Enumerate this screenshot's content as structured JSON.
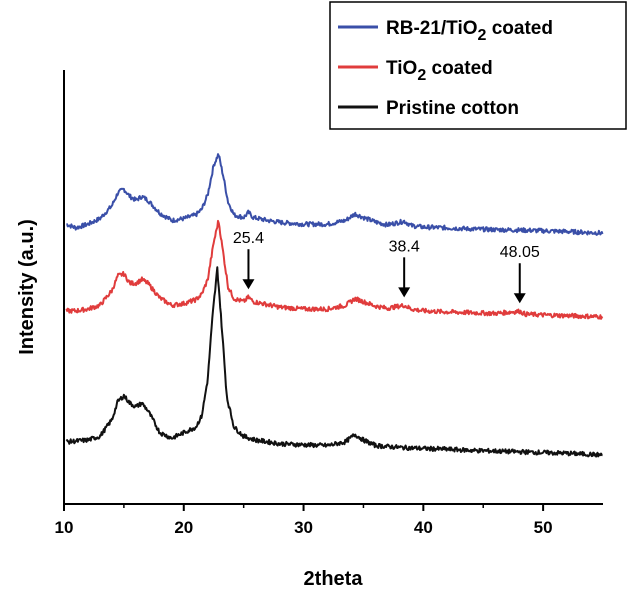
{
  "chart_data": {
    "type": "line",
    "xlabel": "2theta",
    "ylabel": "Intensity (a.u.)",
    "xlim": [
      10,
      55
    ],
    "xticks": [
      10,
      20,
      30,
      40,
      50
    ],
    "y_ticks_shown": false,
    "grid": false,
    "legend_position": "top-right",
    "series": [
      {
        "name": "RB-21/TiO2 coated",
        "legend_parts": [
          "RB-21/TiO",
          "2",
          " coated"
        ],
        "color": "#3a4fa8",
        "points": [
          [
            10.2,
            0.65
          ],
          [
            11,
            0.64
          ],
          [
            12,
            0.65
          ],
          [
            13,
            0.665
          ],
          [
            14,
            0.7
          ],
          [
            14.5,
            0.735
          ],
          [
            15,
            0.745
          ],
          [
            15.5,
            0.725
          ],
          [
            16,
            0.715
          ],
          [
            16.5,
            0.725
          ],
          [
            17,
            0.715
          ],
          [
            18,
            0.68
          ],
          [
            19,
            0.66
          ],
          [
            20,
            0.665
          ],
          [
            21,
            0.675
          ],
          [
            21.5,
            0.69
          ],
          [
            22,
            0.73
          ],
          [
            22.5,
            0.81
          ],
          [
            22.9,
            0.84
          ],
          [
            23.3,
            0.78
          ],
          [
            23.7,
            0.71
          ],
          [
            24.2,
            0.675
          ],
          [
            25,
            0.668
          ],
          [
            25.4,
            0.682
          ],
          [
            25.8,
            0.668
          ],
          [
            27,
            0.66
          ],
          [
            28,
            0.655
          ],
          [
            30,
            0.65
          ],
          [
            32,
            0.65
          ],
          [
            33.5,
            0.66
          ],
          [
            34.3,
            0.678
          ],
          [
            35,
            0.668
          ],
          [
            36,
            0.656
          ],
          [
            37,
            0.648
          ],
          [
            38.4,
            0.658
          ],
          [
            39,
            0.646
          ],
          [
            40,
            0.642
          ],
          [
            42,
            0.64
          ],
          [
            44,
            0.637
          ],
          [
            46,
            0.635
          ],
          [
            48,
            0.634
          ],
          [
            50,
            0.632
          ],
          [
            52,
            0.63
          ],
          [
            54,
            0.627
          ],
          [
            55,
            0.626
          ]
        ]
      },
      {
        "name": "TiO2 coated",
        "legend_parts": [
          "TiO",
          "2",
          " coated"
        ],
        "color": "#e03c3c",
        "points": [
          [
            10.2,
            0.415
          ],
          [
            11,
            0.415
          ],
          [
            12,
            0.42
          ],
          [
            13,
            0.43
          ],
          [
            14,
            0.47
          ],
          [
            14.5,
            0.51
          ],
          [
            15,
            0.515
          ],
          [
            15.5,
            0.49
          ],
          [
            16,
            0.49
          ],
          [
            16.5,
            0.5
          ],
          [
            17,
            0.49
          ],
          [
            18,
            0.45
          ],
          [
            19,
            0.43
          ],
          [
            20,
            0.435
          ],
          [
            21,
            0.445
          ],
          [
            21.5,
            0.46
          ],
          [
            22,
            0.5
          ],
          [
            22.5,
            0.6
          ],
          [
            22.9,
            0.66
          ],
          [
            23.3,
            0.57
          ],
          [
            23.7,
            0.48
          ],
          [
            24.2,
            0.448
          ],
          [
            25,
            0.44
          ],
          [
            25.4,
            0.452
          ],
          [
            25.8,
            0.44
          ],
          [
            27,
            0.432
          ],
          [
            28,
            0.425
          ],
          [
            30,
            0.42
          ],
          [
            32,
            0.42
          ],
          [
            33.5,
            0.43
          ],
          [
            34.3,
            0.448
          ],
          [
            35,
            0.44
          ],
          [
            36,
            0.428
          ],
          [
            37,
            0.422
          ],
          [
            38.4,
            0.43
          ],
          [
            39,
            0.42
          ],
          [
            40,
            0.415
          ],
          [
            42,
            0.412
          ],
          [
            44,
            0.41
          ],
          [
            46,
            0.408
          ],
          [
            48.05,
            0.414
          ],
          [
            48.5,
            0.406
          ],
          [
            50,
            0.404
          ],
          [
            52,
            0.402
          ],
          [
            54,
            0.4
          ],
          [
            55,
            0.399
          ]
        ]
      },
      {
        "name": "Pristine cotton",
        "legend_parts": [
          "Pristine cotton",
          "",
          ""
        ],
        "color": "#111111",
        "points": [
          [
            10.2,
            0.06
          ],
          [
            11,
            0.062
          ],
          [
            12,
            0.065
          ],
          [
            13,
            0.075
          ],
          [
            14,
            0.12
          ],
          [
            14.5,
            0.17
          ],
          [
            15,
            0.185
          ],
          [
            15.5,
            0.165
          ],
          [
            16,
            0.155
          ],
          [
            16.5,
            0.165
          ],
          [
            17,
            0.145
          ],
          [
            18,
            0.085
          ],
          [
            19,
            0.07
          ],
          [
            20,
            0.085
          ],
          [
            21,
            0.1
          ],
          [
            21.5,
            0.13
          ],
          [
            22,
            0.23
          ],
          [
            22.4,
            0.4
          ],
          [
            22.8,
            0.53
          ],
          [
            23.2,
            0.36
          ],
          [
            23.6,
            0.18
          ],
          [
            24.2,
            0.1
          ],
          [
            25,
            0.075
          ],
          [
            26,
            0.065
          ],
          [
            28,
            0.055
          ],
          [
            30,
            0.052
          ],
          [
            32,
            0.05
          ],
          [
            33.5,
            0.06
          ],
          [
            34.3,
            0.08
          ],
          [
            35,
            0.065
          ],
          [
            36,
            0.05
          ],
          [
            38,
            0.045
          ],
          [
            40,
            0.042
          ],
          [
            42,
            0.04
          ],
          [
            44,
            0.037
          ],
          [
            46,
            0.035
          ],
          [
            48,
            0.033
          ],
          [
            50,
            0.031
          ],
          [
            52,
            0.029
          ],
          [
            54,
            0.026
          ],
          [
            55,
            0.024
          ]
        ]
      }
    ],
    "annotations": [
      {
        "label": "25.4",
        "x": 25.4,
        "series": 1
      },
      {
        "label": "38.4",
        "x": 38.4,
        "series": 1
      },
      {
        "label": "48.05",
        "x": 48.05,
        "series": 1
      }
    ]
  }
}
